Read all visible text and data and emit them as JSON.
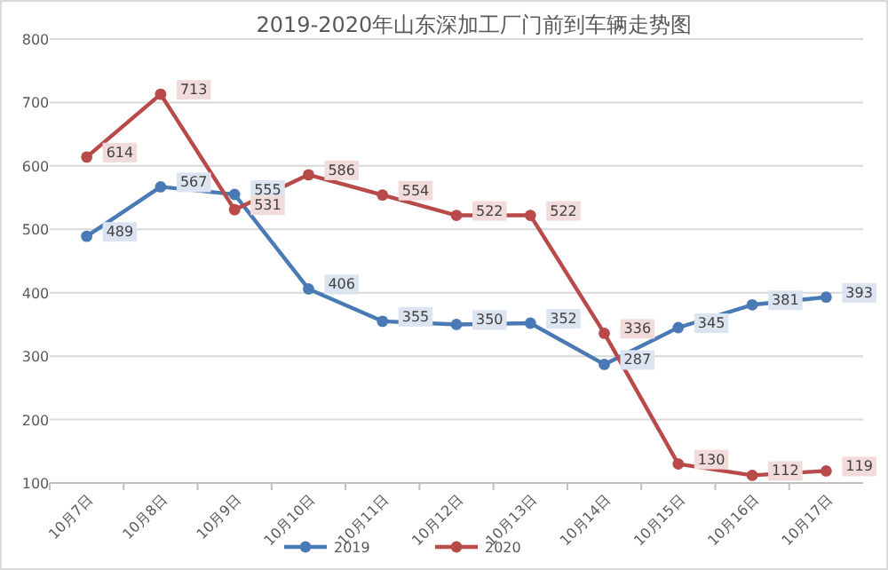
{
  "chart_data": {
    "type": "line",
    "title": "2019-2020年山东深加工厂门前到车辆走势图",
    "categories": [
      "10月7日",
      "10月8日",
      "10月9日",
      "10月10日",
      "10月11日",
      "10月12日",
      "10月13日",
      "10月14日",
      "10月15日",
      "10月16日",
      "10月17日"
    ],
    "series": [
      {
        "name": "2019",
        "color": "#4a7ab5",
        "values": [
          489,
          567,
          555,
          406,
          355,
          350,
          352,
          287,
          345,
          381,
          393
        ]
      },
      {
        "name": "2020",
        "color": "#b84a4a",
        "values": [
          614,
          713,
          531,
          586,
          554,
          522,
          522,
          336,
          130,
          112,
          119
        ]
      }
    ],
    "ylim": [
      100,
      800
    ],
    "yticks": [
      100,
      200,
      300,
      400,
      500,
      600,
      700,
      800
    ],
    "grid": "y",
    "legend": "bottom",
    "marker": "circle",
    "data_labels": true
  }
}
